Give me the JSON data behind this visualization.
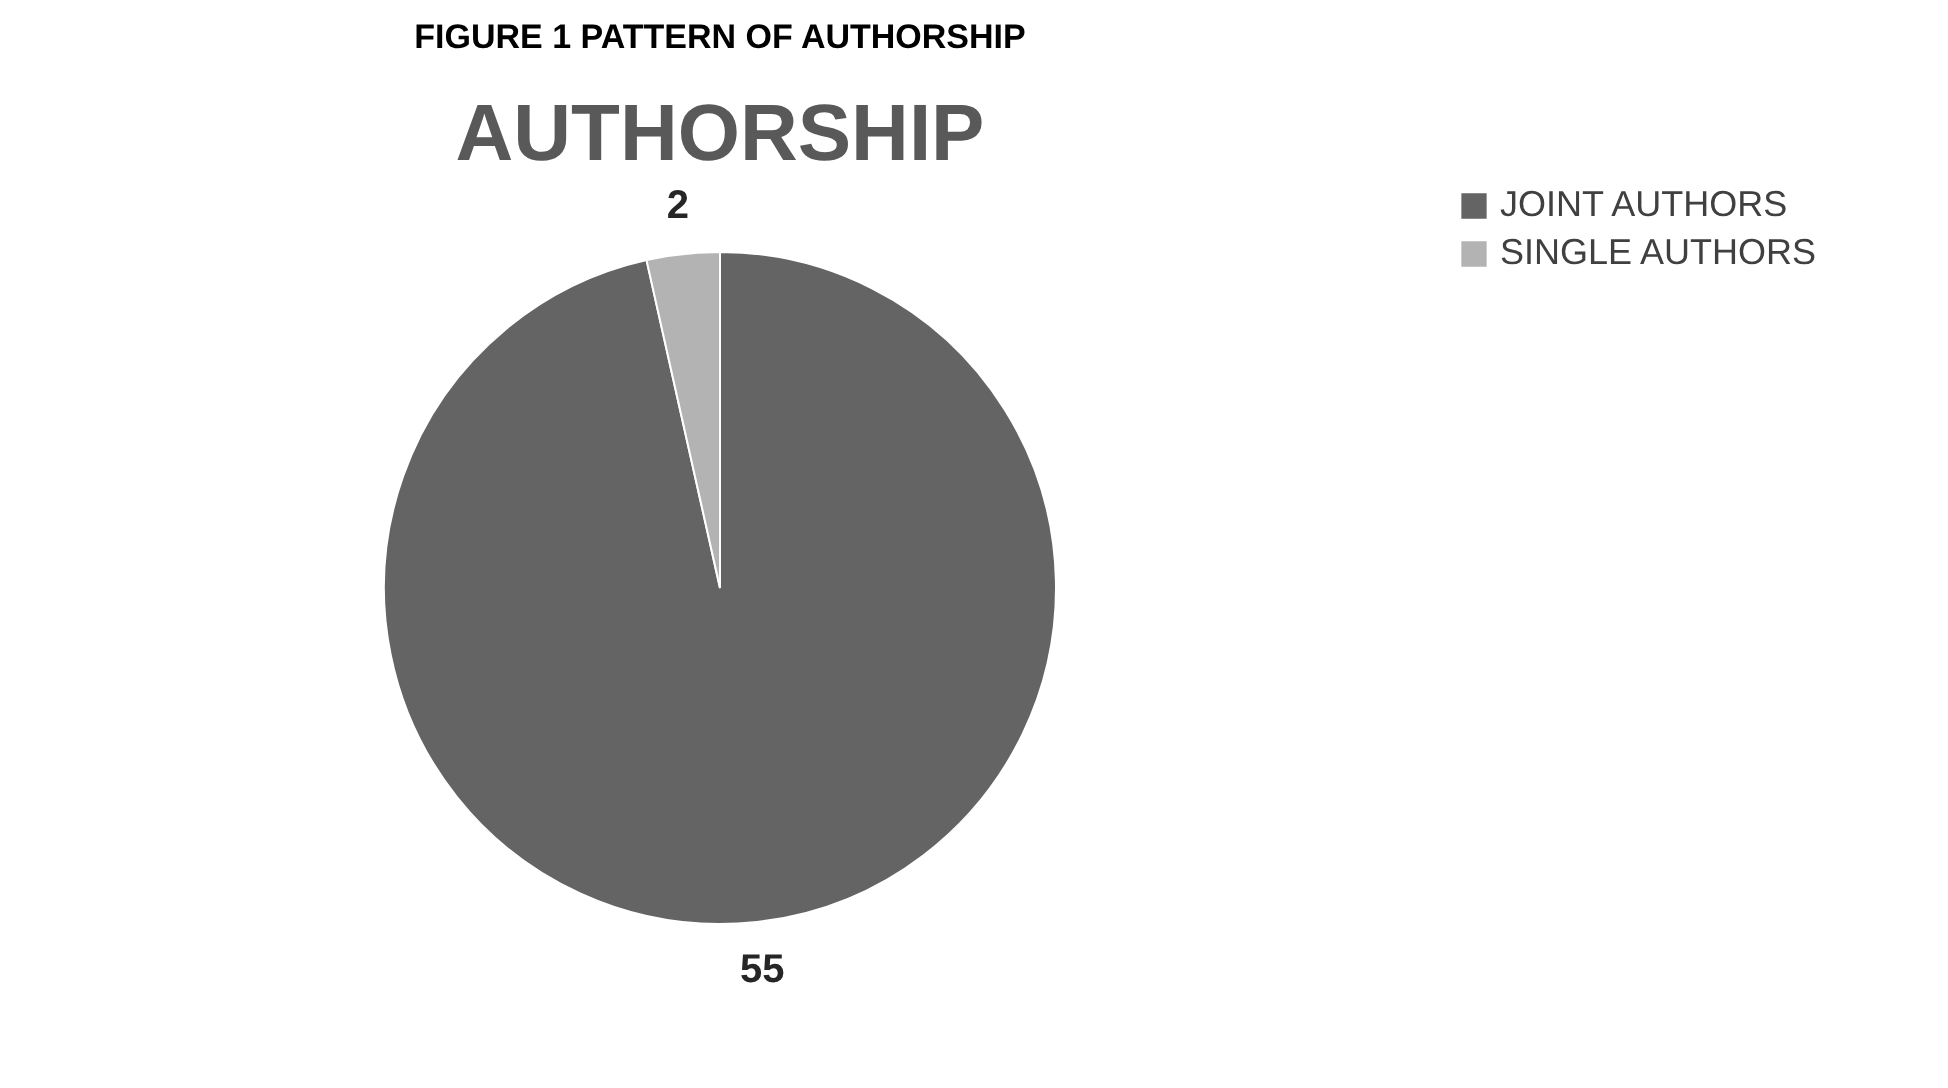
{
  "chart_data": {
    "type": "pie",
    "title": "FIGURE 1 PATTERN OF AUTHORSHIP",
    "subtitle": "AUTHORSHIP",
    "categories": [
      "JOINT AUTHORS",
      "SINGLE AUTHORS"
    ],
    "values": [
      55,
      2
    ],
    "colors": [
      "#646464",
      "#b3b3b3"
    ],
    "data_labels": true,
    "legend": "right"
  }
}
